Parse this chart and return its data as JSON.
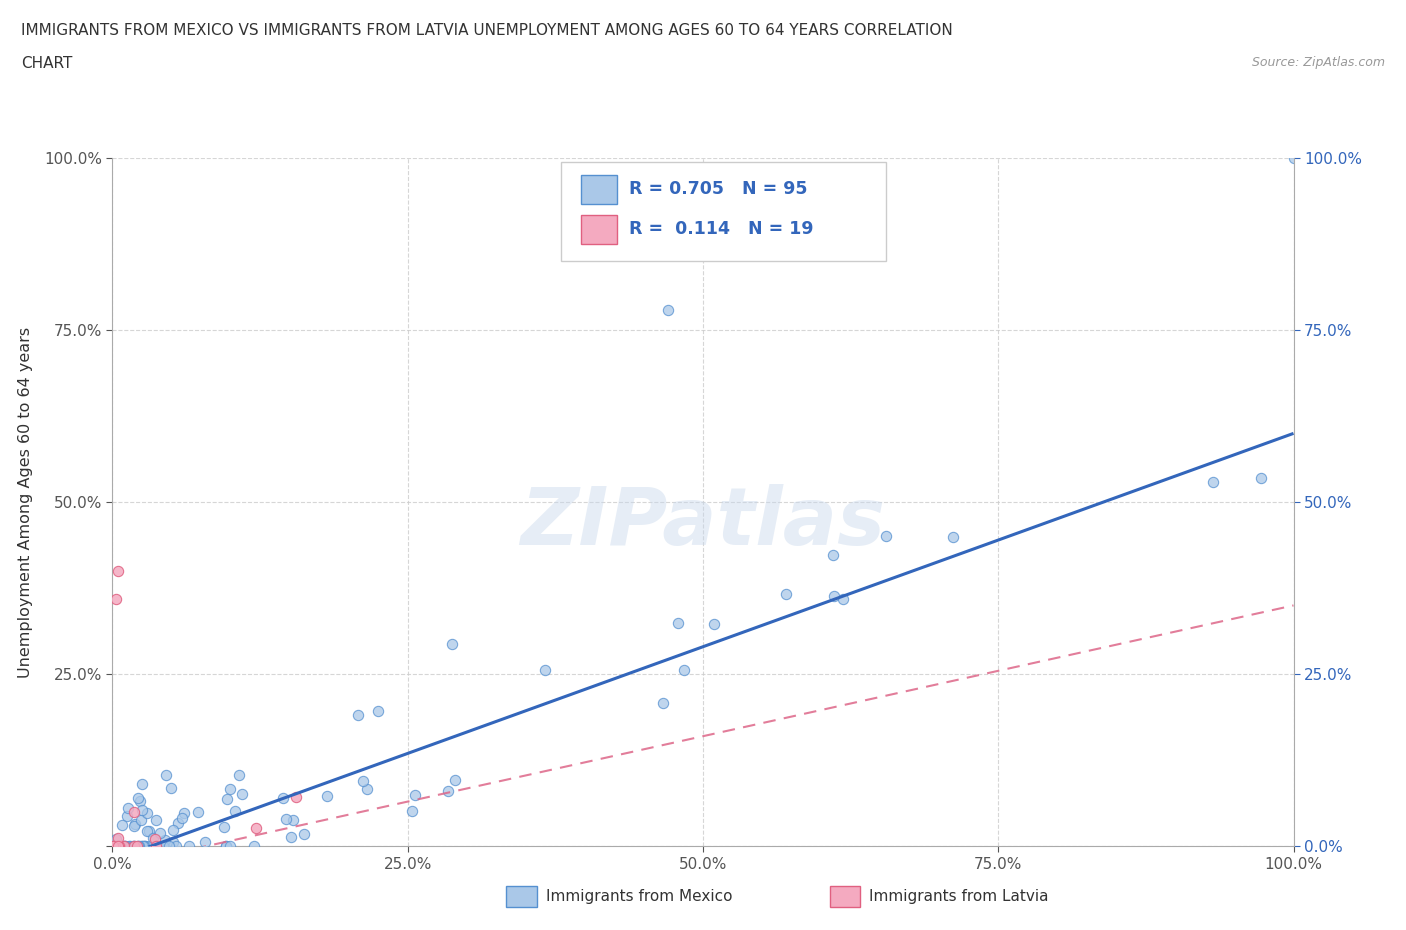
{
  "title_line1": "IMMIGRANTS FROM MEXICO VS IMMIGRANTS FROM LATVIA UNEMPLOYMENT AMONG AGES 60 TO 64 YEARS CORRELATION",
  "title_line2": "CHART",
  "source": "Source: ZipAtlas.com",
  "ylabel": "Unemployment Among Ages 60 to 64 years",
  "xlim": [
    0.0,
    1.0
  ],
  "ylim": [
    0.0,
    1.0
  ],
  "xticks": [
    0.0,
    0.25,
    0.5,
    0.75,
    1.0
  ],
  "xticklabels": [
    "0.0%",
    "25.0%",
    "50.0%",
    "75.0%",
    "100.0%"
  ],
  "ytick_positions": [
    0.0,
    0.25,
    0.5,
    0.75,
    1.0
  ],
  "ytick_labels": [
    "",
    "25.0%",
    "50.0%",
    "75.0%",
    "100.0%"
  ],
  "right_ytick_labels": [
    "0.0%",
    "25.0%",
    "50.0%",
    "75.0%",
    "100.0%"
  ],
  "mexico_color": "#aac8e8",
  "latvia_color": "#f4aac0",
  "mexico_edge_color": "#5590d0",
  "latvia_edge_color": "#e06080",
  "mexico_line_color": "#3366bb",
  "latvia_line_color": "#dd6688",
  "mexico_R": 0.705,
  "mexico_N": 95,
  "latvia_R": 0.114,
  "latvia_N": 19,
  "watermark": "ZIPatlas",
  "legend_mexico": "Immigrants from Mexico",
  "legend_latvia": "Immigrants from Latvia",
  "background_color": "#ffffff",
  "grid_color": "#cccccc",
  "mexico_line_intercept": -0.02,
  "mexico_line_slope": 0.62,
  "latvia_line_intercept": -0.03,
  "latvia_line_slope": 0.38
}
